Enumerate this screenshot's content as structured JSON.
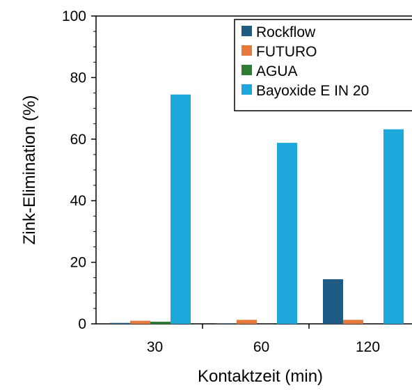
{
  "chart_data": {
    "type": "bar",
    "title": "",
    "xlabel": "Kontaktzeit (min)",
    "ylabel": "Zink-Elimination (%)",
    "categories": [
      "30",
      "60",
      "120"
    ],
    "ylim": [
      0,
      100
    ],
    "yticks": [
      0,
      20,
      40,
      60,
      80,
      100
    ],
    "grid": false,
    "legend_position": "top-right",
    "series": [
      {
        "name": "Rockflow",
        "color": "#1f5c85",
        "values": [
          0.3,
          0.1,
          14.5
        ]
      },
      {
        "name": "FUTURO",
        "color": "#e57a3c",
        "values": [
          1.0,
          1.3,
          1.3
        ]
      },
      {
        "name": "AGUA",
        "color": "#2e7d32",
        "values": [
          0.7,
          0.0,
          0.0
        ]
      },
      {
        "name": "Bayoxide E IN 20",
        "color": "#1ea7db",
        "values": [
          74.5,
          58.8,
          63.2
        ]
      }
    ]
  }
}
